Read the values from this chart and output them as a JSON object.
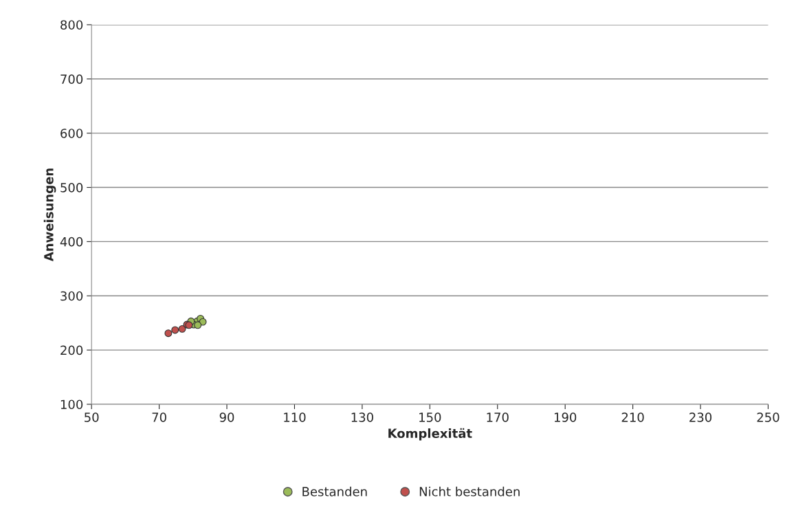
{
  "chart_data": {
    "type": "scatter",
    "xlabel": "Komplexität",
    "ylabel": "Anweisungen",
    "xlim": [
      50,
      250
    ],
    "xticks": [
      50,
      70,
      90,
      110,
      130,
      150,
      170,
      190,
      210,
      230,
      250
    ],
    "ylim": [
      100,
      800
    ],
    "yticks": [
      100,
      200,
      300,
      400,
      500,
      600,
      700,
      800
    ],
    "grid": "y",
    "legend": "bottom",
    "marker": "circle",
    "series": [
      {
        "name": "Bestanden",
        "color": "#9bbb59",
        "x": [
          81.2,
          82.2,
          82.9,
          80.2,
          79.4,
          81.4
        ],
        "values": [
          253,
          258,
          252,
          247,
          253,
          246
        ]
      },
      {
        "name": "Nicht bestanden",
        "color": "#c0504d",
        "x": [
          72.7,
          74.7,
          76.8,
          78.2,
          78.8
        ],
        "values": [
          231,
          237,
          239,
          247,
          246
        ]
      }
    ]
  }
}
